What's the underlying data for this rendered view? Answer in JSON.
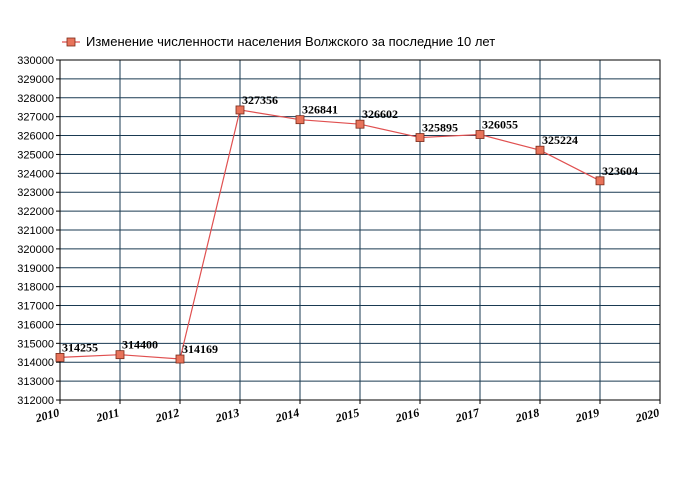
{
  "chart_data": {
    "type": "line",
    "title": "",
    "xlabel": "",
    "ylabel": "",
    "x": [
      2010,
      2011,
      2012,
      2013,
      2014,
      2015,
      2016,
      2017,
      2018,
      2019
    ],
    "x_ticks": [
      "2010",
      "2011",
      "2012",
      "2013",
      "2014",
      "2015",
      "2016",
      "2017",
      "2018",
      "2019",
      "2020"
    ],
    "xlim": [
      2010,
      2020
    ],
    "ylim": [
      312000,
      330000
    ],
    "y_ticks": [
      "312000",
      "313000",
      "314000",
      "315000",
      "316000",
      "317000",
      "318000",
      "319000",
      "320000",
      "321000",
      "322000",
      "323000",
      "324000",
      "325000",
      "326000",
      "327000",
      "328000",
      "329000",
      "330000"
    ],
    "grid": true,
    "legend_position": "top",
    "series": [
      {
        "name": "Изменение численности населения Волжского за последние 10 лет",
        "values": [
          314255,
          314400,
          314169,
          327356,
          326841,
          326602,
          325895,
          326055,
          325224,
          323604
        ],
        "data_labels": [
          "314255",
          "314400",
          "314169",
          "327356",
          "326841",
          "326602",
          "325895",
          "326055",
          "325224",
          "323604"
        ],
        "line_color": "#e05050",
        "marker_color": "#e8735a"
      }
    ],
    "grid_color": "#1a3a52",
    "axis_color": "#000000"
  }
}
